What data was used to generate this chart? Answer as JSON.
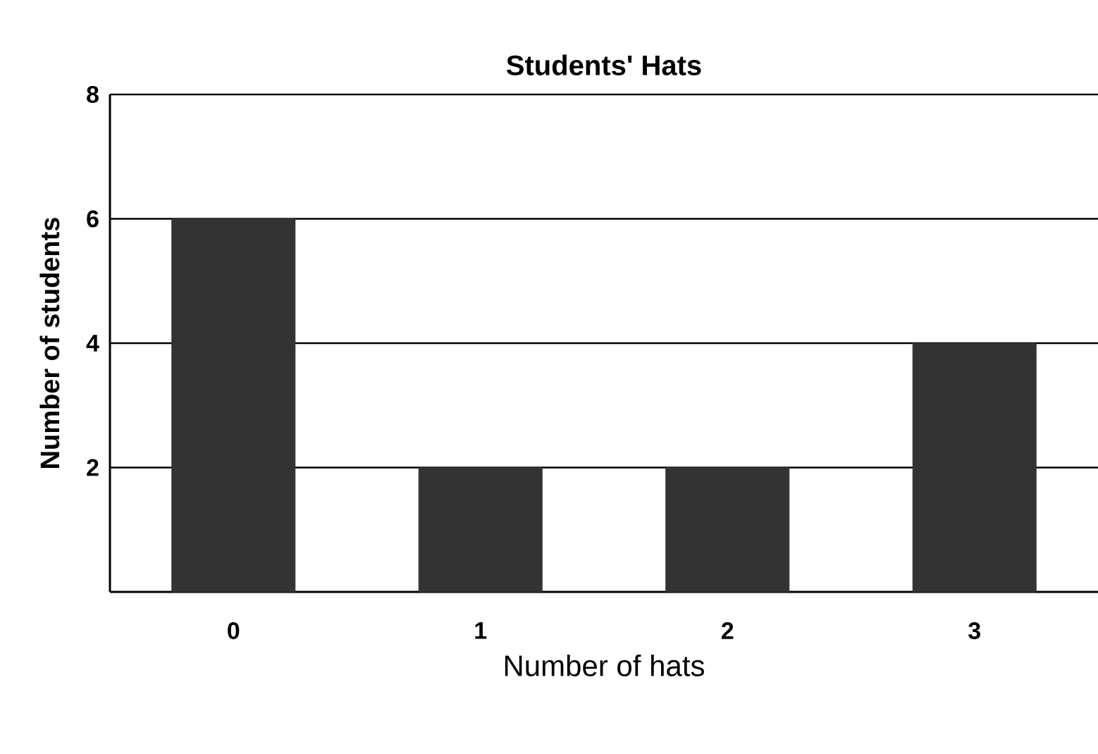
{
  "chart_data": {
    "type": "bar",
    "title": "Students' Hats",
    "xlabel": "Number of hats",
    "ylabel": "Number of students",
    "categories": [
      "0",
      "1",
      "2",
      "3"
    ],
    "values": [
      6,
      2,
      2,
      4
    ],
    "color": "#333333",
    "ylim": [
      0,
      8
    ],
    "yticks": [
      2,
      4,
      6,
      8
    ],
    "grid": "y"
  }
}
